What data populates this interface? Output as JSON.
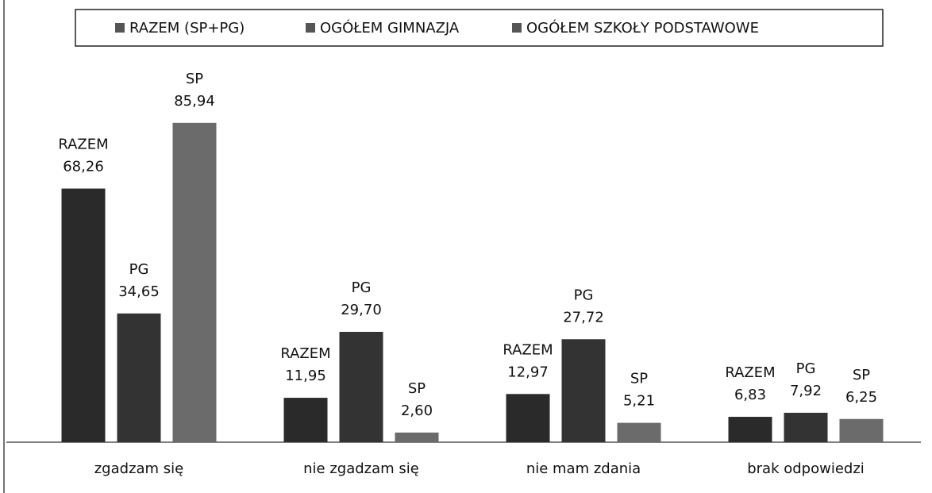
{
  "chart_data": {
    "type": "bar",
    "categories": [
      "zgadzam się",
      "nie zgadzam się",
      "nie mam zdania",
      "brak odpowiedzi"
    ],
    "series": [
      {
        "name": "RAZEM (SP+PG)",
        "short_name": "RAZEM",
        "color": "#2a2a2a",
        "values": [
          68.26,
          11.95,
          12.97,
          6.83
        ],
        "value_labels": [
          "68,26",
          "11,95",
          "12,97",
          "6,83"
        ]
      },
      {
        "name": "OGÓŁEM GIMNAZJA",
        "short_name": "PG",
        "color": "#333333",
        "values": [
          34.65,
          29.7,
          27.72,
          7.92
        ],
        "value_labels": [
          "34,65",
          "29,70",
          "27,72",
          "7,92"
        ]
      },
      {
        "name": "OGÓŁEM SZKOŁY PODSTAWOWE",
        "short_name": "SP",
        "color": "#6b6b6b",
        "values": [
          85.94,
          2.6,
          5.21,
          6.25
        ],
        "value_labels": [
          "85,94",
          "2,60",
          "5,21",
          "6,25"
        ]
      }
    ],
    "ylim": [
      0,
      100
    ],
    "legend": "top"
  }
}
